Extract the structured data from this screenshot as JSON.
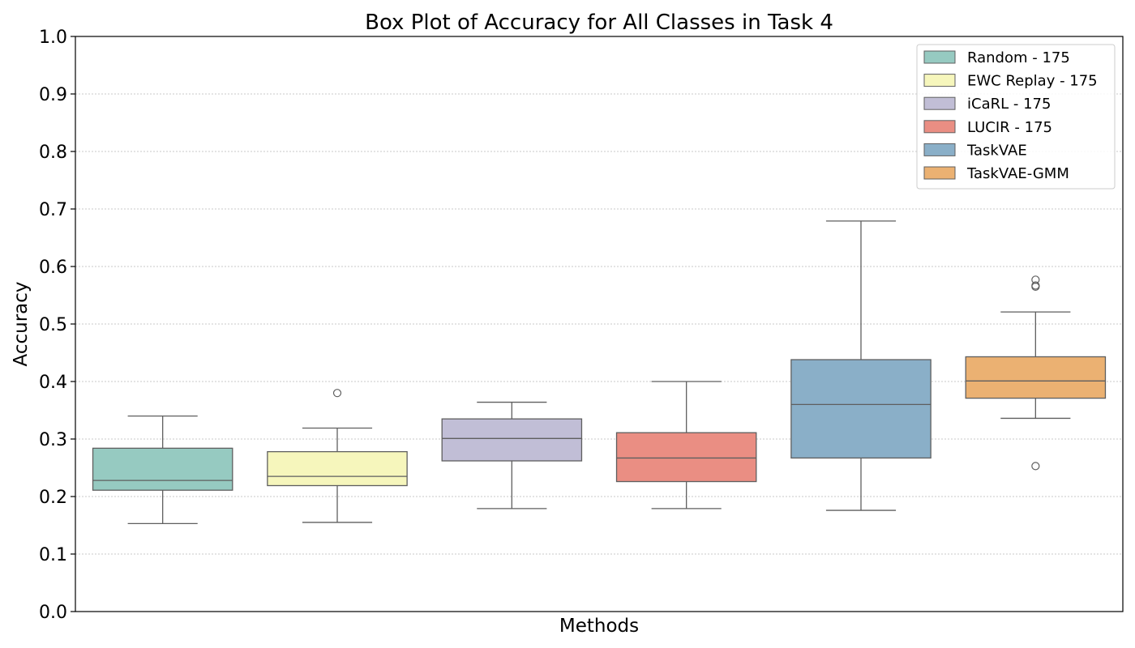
{
  "chart_data": {
    "type": "box",
    "title": "Box Plot of Accuracy for All Classes in Task 4",
    "xlabel": "Methods",
    "ylabel": "Accuracy",
    "ylim": [
      0,
      1
    ],
    "yticks": [
      "0.0",
      "0.1",
      "0.2",
      "0.3",
      "0.4",
      "0.5",
      "0.6",
      "0.7",
      "0.8",
      "0.9",
      "1.0"
    ],
    "grid": "y-dotted",
    "legend_position": "top-right",
    "series": [
      {
        "name": "Random - 175",
        "color": "#96cac1",
        "whisker_low": 0.153,
        "q1": 0.211,
        "median": 0.228,
        "q3": 0.284,
        "whisker_high": 0.34,
        "outliers": []
      },
      {
        "name": "EWC Replay - 175",
        "color": "#f6f6bc",
        "whisker_low": 0.155,
        "q1": 0.219,
        "median": 0.235,
        "q3": 0.278,
        "whisker_high": 0.319,
        "outliers": [
          0.38
        ]
      },
      {
        "name": "iCaRL - 175",
        "color": "#c1bed6",
        "whisker_low": 0.179,
        "q1": 0.262,
        "median": 0.301,
        "q3": 0.335,
        "whisker_high": 0.364,
        "outliers": []
      },
      {
        "name": "LUCIR - 175",
        "color": "#ea8e83",
        "whisker_low": 0.179,
        "q1": 0.226,
        "median": 0.267,
        "q3": 0.311,
        "whisker_high": 0.4,
        "outliers": []
      },
      {
        "name": "TaskVAE",
        "color": "#8aafc8",
        "whisker_low": 0.176,
        "q1": 0.267,
        "median": 0.36,
        "q3": 0.438,
        "whisker_high": 0.679,
        "outliers": []
      },
      {
        "name": "TaskVAE-GMM",
        "color": "#ebb172",
        "whisker_low": 0.336,
        "q1": 0.371,
        "median": 0.401,
        "q3": 0.443,
        "whisker_high": 0.521,
        "outliers": [
          0.577,
          0.567,
          0.565,
          0.253
        ]
      }
    ]
  }
}
